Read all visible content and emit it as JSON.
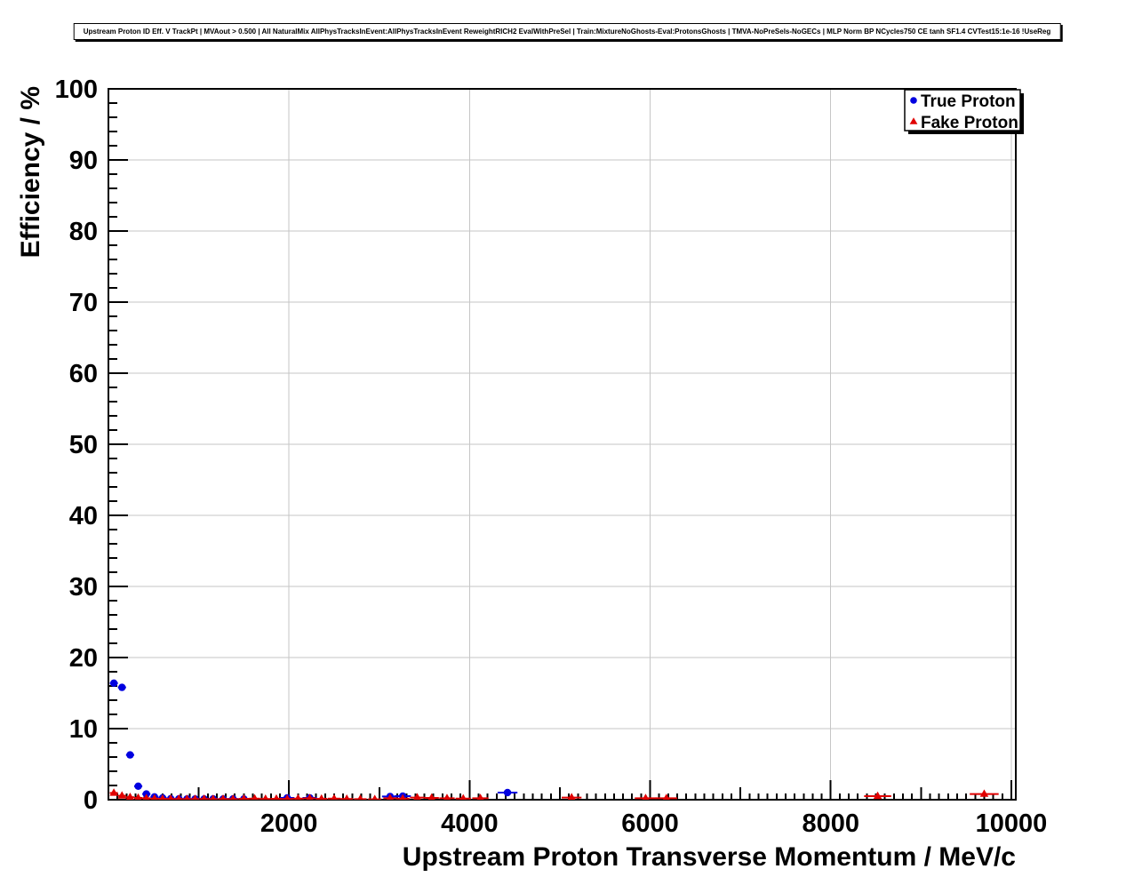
{
  "chart_data": {
    "type": "scatter",
    "title": "Upstream Proton ID Eff. V TrackPt | MVAout > 0.500 | All NaturalMix AllPhysTracksInEvent:AllPhysTracksInEvent ReweightRICH2 EvalWithPreSel | Train:MixtureNoGhosts-Eval:ProtonsGhosts | TMVA-NoPreSels-NoGECs | MLP Norm BP NCycles750 CE tanh SF1.4 CVTest15:1e-16 !UseReg",
    "xlabel": "Upstream Proton Transverse Momentum / MeV/c",
    "ylabel": "Efficiency / %",
    "xlim": [
      0,
      10050
    ],
    "ylim": [
      0,
      100
    ],
    "x_major_ticks": [
      2000,
      4000,
      6000,
      8000,
      10000
    ],
    "y_major_ticks": [
      0,
      10,
      20,
      30,
      40,
      50,
      60,
      70,
      80,
      90,
      100
    ],
    "x_minor_step": 100,
    "x_mid_step": 1000,
    "y_minor_step": 2,
    "grid": true,
    "grid_color": "#c6c6c6",
    "frame_color": "#000000",
    "background": "#ffffff",
    "legend_position": "top-right",
    "series": [
      {
        "name": "True Proton",
        "color": "#0000e0",
        "marker": "circle",
        "points": [
          [
            60,
            16.4,
            45,
            0.4
          ],
          [
            150,
            15.8,
            45,
            0.4
          ],
          [
            240,
            6.3,
            45,
            0.25
          ],
          [
            330,
            1.9,
            45,
            0.15
          ],
          [
            420,
            0.8,
            45,
            0.1
          ],
          [
            510,
            0.4,
            45,
            0.08
          ],
          [
            600,
            0.25,
            45,
            0.06
          ],
          [
            690,
            0.15,
            45,
            0.05
          ],
          [
            780,
            0.12,
            45,
            0.04
          ],
          [
            870,
            0.1,
            45,
            0.04
          ],
          [
            960,
            0.1,
            45,
            0.04
          ],
          [
            1060,
            0.1,
            50,
            0.04
          ],
          [
            1160,
            0.12,
            50,
            0.04
          ],
          [
            1270,
            0.1,
            55,
            0.04
          ],
          [
            1380,
            0.12,
            55,
            0.04
          ],
          [
            1500,
            0.1,
            60,
            0.04
          ],
          [
            1980,
            0.25,
            80,
            0.08
          ],
          [
            2230,
            0.25,
            80,
            0.08
          ],
          [
            3120,
            0.45,
            90,
            0.15
          ],
          [
            3260,
            0.5,
            90,
            0.15
          ],
          [
            4420,
            1.0,
            110,
            0.45
          ]
        ]
      },
      {
        "name": "Fake Proton",
        "color": "#e00000",
        "marker": "triangle",
        "points": [
          [
            60,
            0.95,
            45,
            0.12
          ],
          [
            150,
            0.55,
            45,
            0.08
          ],
          [
            240,
            0.35,
            45,
            0.06
          ],
          [
            330,
            0.25,
            45,
            0.05
          ],
          [
            420,
            0.2,
            45,
            0.04
          ],
          [
            510,
            0.15,
            45,
            0.04
          ],
          [
            600,
            0.12,
            45,
            0.03
          ],
          [
            690,
            0.1,
            45,
            0.03
          ],
          [
            780,
            0.1,
            45,
            0.03
          ],
          [
            870,
            0.08,
            45,
            0.03
          ],
          [
            960,
            0.08,
            45,
            0.03
          ],
          [
            1060,
            0.1,
            50,
            0.03
          ],
          [
            1160,
            0.08,
            50,
            0.03
          ],
          [
            1270,
            0.1,
            55,
            0.03
          ],
          [
            1380,
            0.08,
            55,
            0.03
          ],
          [
            1500,
            0.12,
            60,
            0.04
          ],
          [
            1620,
            0.15,
            60,
            0.04
          ],
          [
            1740,
            0.1,
            60,
            0.04
          ],
          [
            1860,
            0.12,
            60,
            0.04
          ],
          [
            1980,
            0.1,
            60,
            0.04
          ],
          [
            2100,
            0.15,
            65,
            0.05
          ],
          [
            2230,
            0.2,
            65,
            0.05
          ],
          [
            2360,
            0.12,
            65,
            0.05
          ],
          [
            2500,
            0.15,
            70,
            0.05
          ],
          [
            2640,
            0.1,
            70,
            0.05
          ],
          [
            2790,
            0.08,
            70,
            0.04
          ],
          [
            2950,
            0.05,
            75,
            0.04
          ],
          [
            3120,
            0.2,
            75,
            0.06
          ],
          [
            3260,
            0.15,
            75,
            0.06
          ],
          [
            3420,
            0.3,
            80,
            0.08
          ],
          [
            3580,
            0.25,
            80,
            0.08
          ],
          [
            3750,
            0.2,
            85,
            0.07
          ],
          [
            3930,
            0.15,
            85,
            0.07
          ],
          [
            4120,
            0.2,
            90,
            0.08
          ],
          [
            5130,
            0.3,
            110,
            0.1
          ],
          [
            5950,
            0.2,
            120,
            0.09
          ],
          [
            6180,
            0.2,
            120,
            0.09
          ],
          [
            8520,
            0.5,
            150,
            0.2
          ],
          [
            9700,
            0.8,
            160,
            0.3
          ]
        ]
      }
    ]
  }
}
